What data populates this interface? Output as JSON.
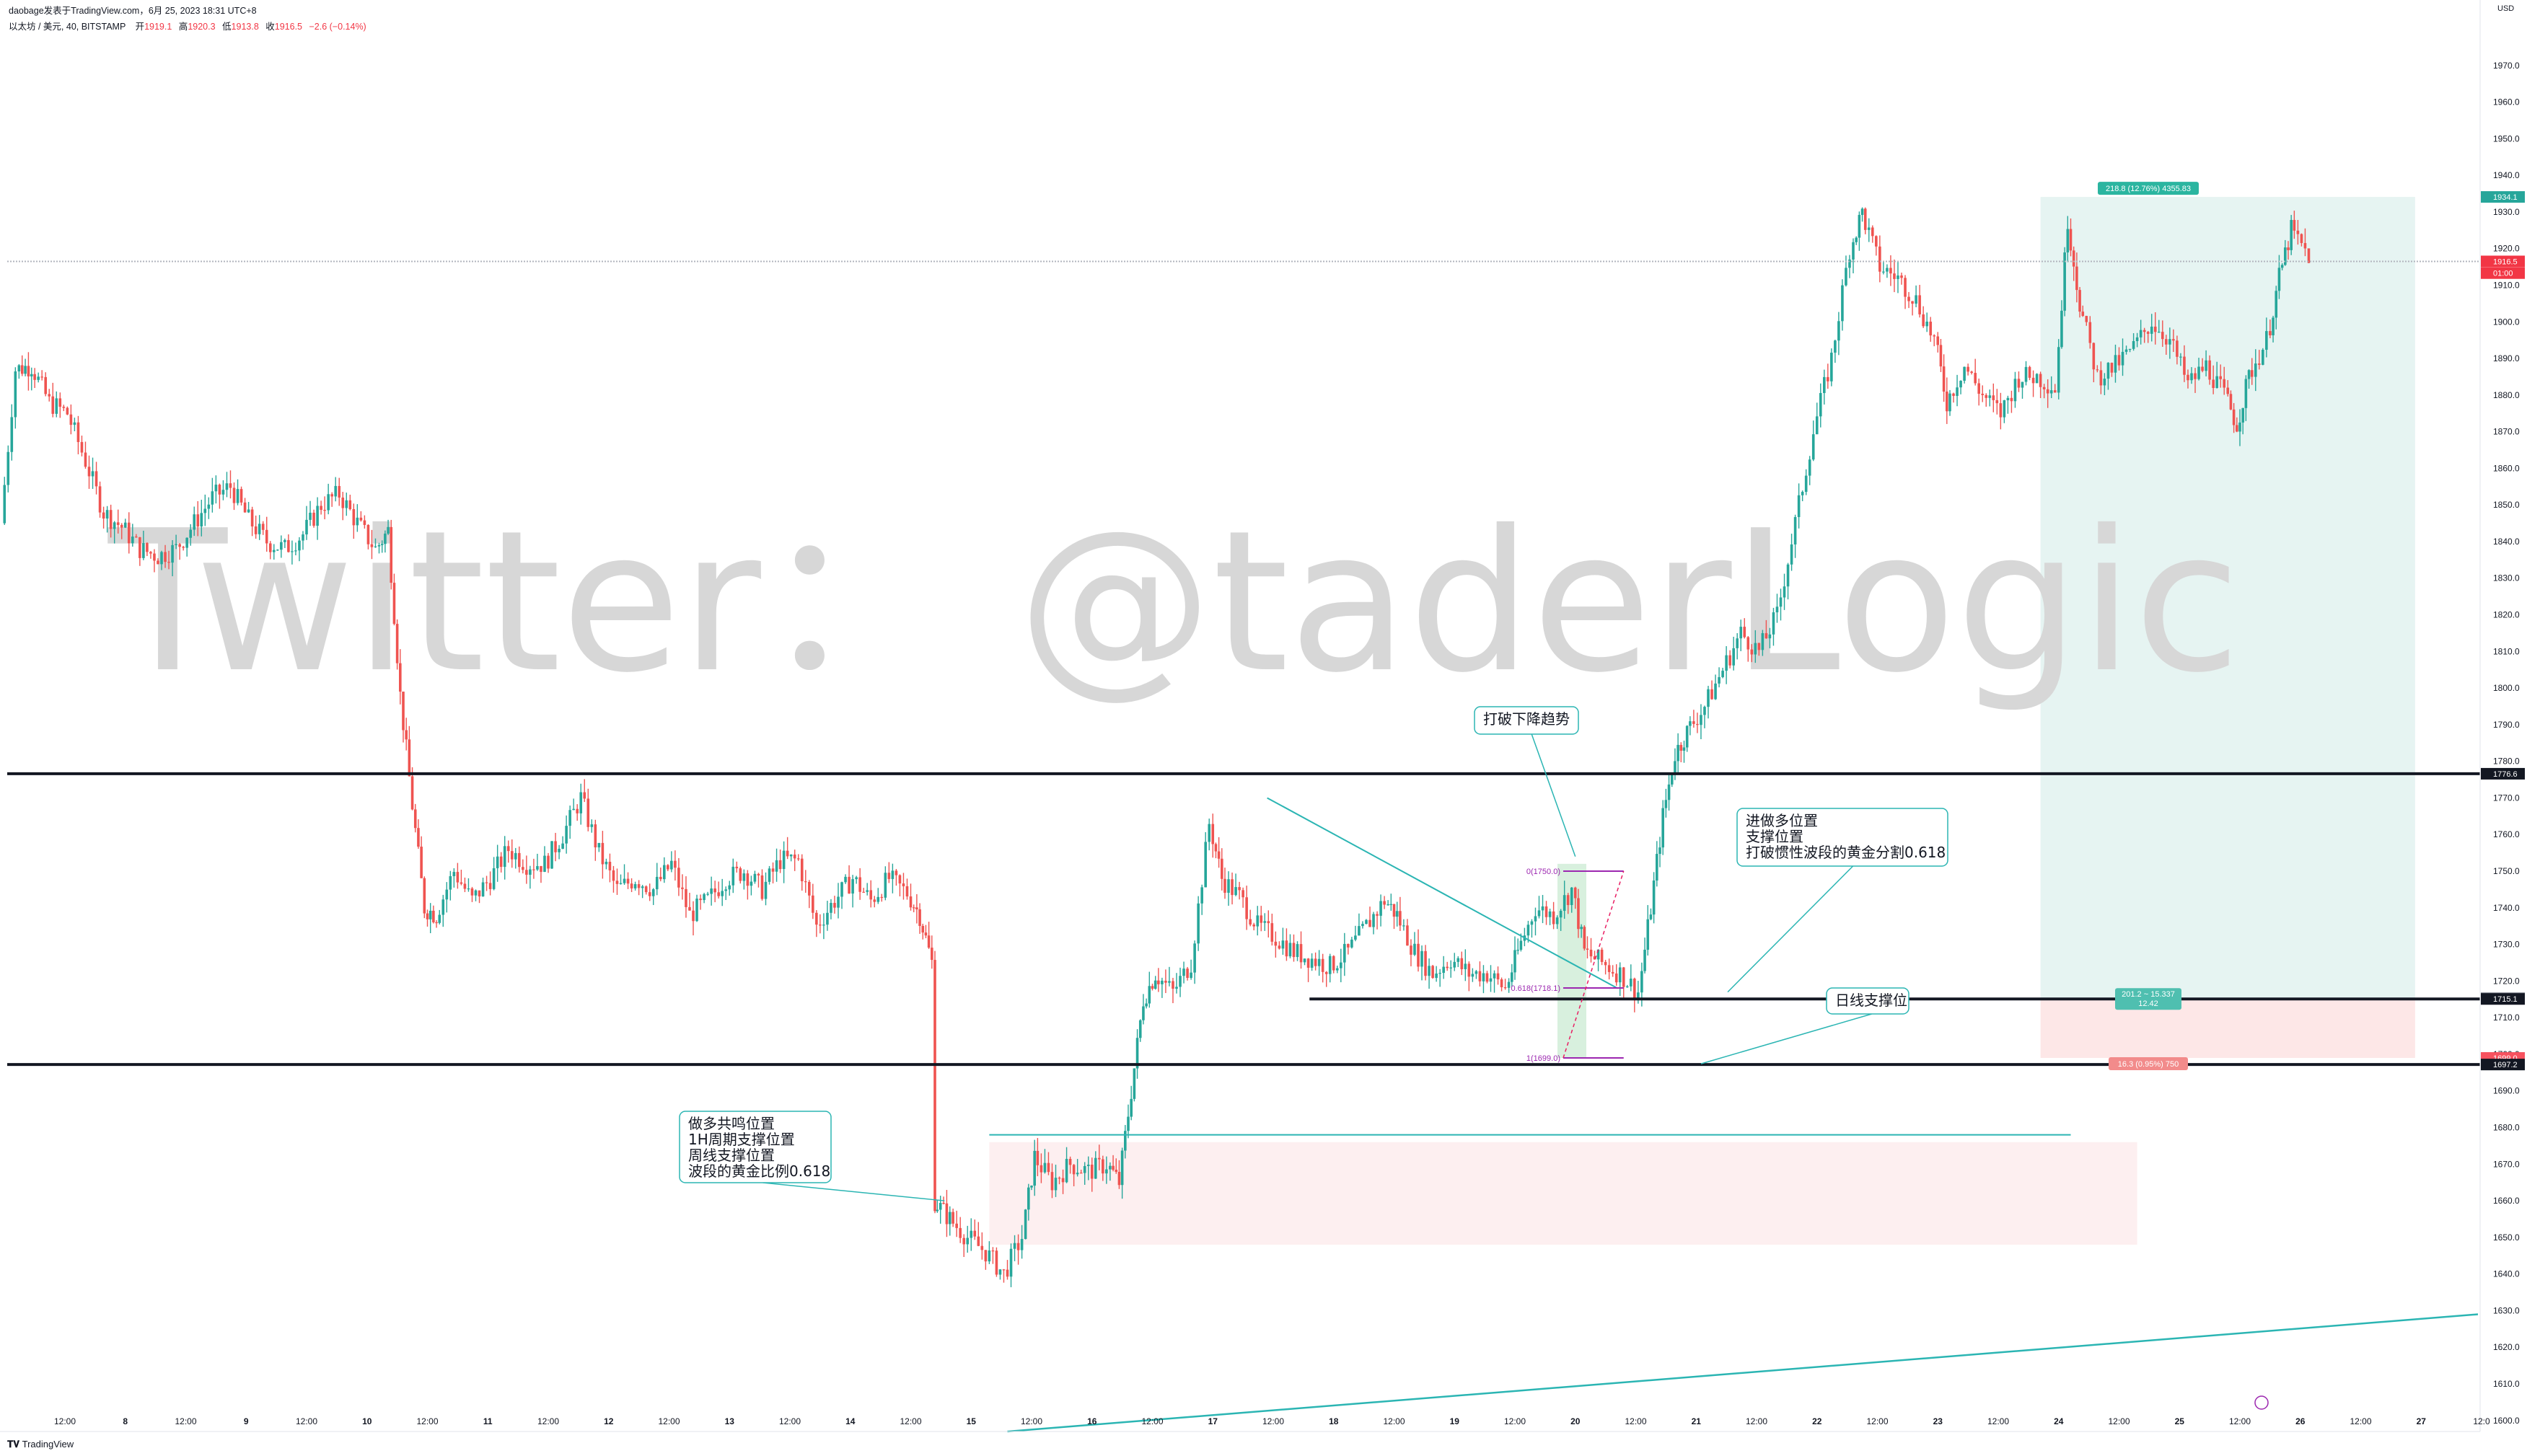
{
  "header": {
    "published_line": "daobage发表于TradingView.com，6月 25, 2023 18:31 UTC+8",
    "symbol_line": "以太坊 / 美元, 40, BITSTAMP",
    "ohlc": {
      "open_label": "开",
      "open": "1919.1",
      "high_label": "高",
      "high": "1920.3",
      "low_label": "低",
      "low": "1913.8",
      "close_label": "收",
      "close": "1916.5",
      "change": "−2.6 (−0.14%)"
    }
  },
  "watermark": "Twitter：  @taderLogic",
  "currency": "USD",
  "price_axis": {
    "ticks": [
      "1970.0",
      "1960.0",
      "1950.0",
      "1940.0",
      "1930.0",
      "1920.0",
      "1910.0",
      "1900.0",
      "1890.0",
      "1880.0",
      "1870.0",
      "1860.0",
      "1850.0",
      "1840.0",
      "1830.0",
      "1820.0",
      "1810.0",
      "1800.0",
      "1790.0",
      "1780.0",
      "1770.0",
      "1760.0",
      "1750.0",
      "1740.0",
      "1730.0",
      "1720.0",
      "1710.0",
      "1700.0",
      "1690.0",
      "1680.0",
      "1670.0",
      "1660.0",
      "1650.0",
      "1640.0",
      "1630.0",
      "1620.0",
      "1610.0",
      "1600.0"
    ],
    "tick_values": [
      1970,
      1960,
      1950,
      1940,
      1930,
      1920,
      1910,
      1900,
      1890,
      1880,
      1870,
      1860,
      1850,
      1840,
      1830,
      1820,
      1810,
      1800,
      1790,
      1780,
      1770,
      1760,
      1750,
      1740,
      1730,
      1720,
      1710,
      1700,
      1690,
      1680,
      1670,
      1660,
      1650,
      1640,
      1630,
      1620,
      1610,
      1600
    ],
    "labels": [
      {
        "text": "1934.1",
        "value": 1934.1,
        "color": "#26a69a"
      },
      {
        "text": "1916.5",
        "value": 1916.5,
        "color": "#f23645"
      },
      {
        "text": "01:00",
        "value": 1913.3,
        "color": "#f23645"
      },
      {
        "text": "1776.6",
        "value": 1776.6,
        "color": "#131722"
      },
      {
        "text": "1715.3",
        "value": 1715.3,
        "color": "#787b86"
      },
      {
        "text": "1715.1",
        "value": 1715.1,
        "color": "#131722"
      },
      {
        "text": "1699.0",
        "value": 1699.0,
        "color": "#f7525f"
      },
      {
        "text": "1697.2",
        "value": 1697.2,
        "color": "#131722"
      }
    ]
  },
  "time_axis": {
    "labels": [
      "12:00",
      "8",
      "12:00",
      "9",
      "12:00",
      "10",
      "12:00",
      "11",
      "12:00",
      "12",
      "12:00",
      "13",
      "12:00",
      "14",
      "12:00",
      "15",
      "12:00",
      "16",
      "12:00",
      "17",
      "12:00",
      "18",
      "12:00",
      "19",
      "12:00",
      "20",
      "12:00",
      "21",
      "12:00",
      "22",
      "12:00",
      "23",
      "12:00",
      "24",
      "12:00",
      "25",
      "12:00",
      "26",
      "12:00",
      "27",
      "12:0"
    ],
    "bold": [
      "8",
      "9",
      "10",
      "11",
      "12",
      "13",
      "14",
      "15",
      "16",
      "17",
      "18",
      "19",
      "20",
      "21",
      "22",
      "23",
      "24",
      "25",
      "26",
      "27"
    ]
  },
  "annotations": {
    "break_downtrend": "打破下降趋势",
    "long_entry": [
      "进做多位置",
      "支撑位置",
      "打破惯性波段的黄金分割0.618"
    ],
    "daily_support": "日线支撑位",
    "long_confluence": [
      "做多共鸣位置",
      "1H周期支撑位置",
      "周线支撑位置",
      "波段的黄金比例0.618"
    ]
  },
  "fib_labels": {
    "top": "0(1750.0)",
    "mid": "0.618(1718.1)",
    "bottom": "1(1699.0)"
  },
  "position_tool": {
    "target_label": "218.8 (12.76%) 4355.83",
    "entry_label_1": "201.2 ~ 15.337",
    "entry_label_2": "12.42",
    "stop_label": "16.3 (0.95%) 750"
  },
  "footer": {
    "logo": "TradingView"
  },
  "colors": {
    "up": "#26a69a",
    "down": "#ef5350",
    "trend": "#2bb5b3",
    "profit_zone": "#e6f4f2",
    "loss_zone": "#fde7e7",
    "demand_zone": "#fdeff0",
    "current_price": "#f23645",
    "fib": "#9c27b0"
  },
  "chart_data": {
    "type": "candlestick",
    "symbol": "以太坊 / 美元",
    "exchange": "BITSTAMP",
    "interval": "40",
    "currency": "USD",
    "ylim": [
      1597,
      1980
    ],
    "x_range_days": [
      "7 12:00",
      "27 12:00"
    ],
    "path_points": [
      [
        7.0,
        1845
      ],
      [
        7.12,
        1887
      ],
      [
        7.25,
        1888
      ],
      [
        7.4,
        1878
      ],
      [
        7.55,
        1875
      ],
      [
        7.7,
        1862
      ],
      [
        7.85,
        1848
      ],
      [
        8.0,
        1844
      ],
      [
        8.15,
        1838
      ],
      [
        8.3,
        1836
      ],
      [
        8.45,
        1838
      ],
      [
        8.6,
        1845
      ],
      [
        8.75,
        1852
      ],
      [
        8.9,
        1855
      ],
      [
        9.05,
        1846
      ],
      [
        9.2,
        1840
      ],
      [
        9.35,
        1838
      ],
      [
        9.5,
        1842
      ],
      [
        9.65,
        1850
      ],
      [
        9.8,
        1853
      ],
      [
        9.95,
        1845
      ],
      [
        10.1,
        1838
      ],
      [
        10.2,
        1843
      ],
      [
        10.3,
        1798
      ],
      [
        10.4,
        1768
      ],
      [
        10.5,
        1740
      ],
      [
        10.6,
        1738
      ],
      [
        10.75,
        1750
      ],
      [
        10.9,
        1742
      ],
      [
        11.05,
        1748
      ],
      [
        11.2,
        1756
      ],
      [
        11.35,
        1752
      ],
      [
        11.5,
        1752
      ],
      [
        11.65,
        1760
      ],
      [
        11.8,
        1770
      ],
      [
        11.95,
        1755
      ],
      [
        12.1,
        1745
      ],
      [
        12.25,
        1748
      ],
      [
        12.4,
        1745
      ],
      [
        12.55,
        1752
      ],
      [
        12.7,
        1738
      ],
      [
        12.85,
        1742
      ],
      [
        13.0,
        1748
      ],
      [
        13.15,
        1750
      ],
      [
        13.3,
        1745
      ],
      [
        13.45,
        1753
      ],
      [
        13.6,
        1753
      ],
      [
        13.75,
        1735
      ],
      [
        13.9,
        1742
      ],
      [
        14.05,
        1748
      ],
      [
        14.2,
        1742
      ],
      [
        14.35,
        1748
      ],
      [
        14.5,
        1744
      ],
      [
        14.6,
        1738
      ],
      [
        14.7,
        1725
      ],
      [
        14.72,
        1660
      ],
      [
        14.85,
        1655
      ],
      [
        15.0,
        1650
      ],
      [
        15.15,
        1646
      ],
      [
        15.3,
        1640
      ],
      [
        15.45,
        1650
      ],
      [
        15.55,
        1672
      ],
      [
        15.7,
        1665
      ],
      [
        15.85,
        1670
      ],
      [
        16.0,
        1668
      ],
      [
        16.15,
        1670
      ],
      [
        16.25,
        1665
      ],
      [
        16.35,
        1690
      ],
      [
        16.45,
        1715
      ],
      [
        16.55,
        1722
      ],
      [
        16.7,
        1717
      ],
      [
        16.85,
        1725
      ],
      [
        17.0,
        1763
      ],
      [
        17.1,
        1748
      ],
      [
        17.25,
        1743
      ],
      [
        17.4,
        1735
      ],
      [
        17.55,
        1732
      ],
      [
        17.7,
        1728
      ],
      [
        17.85,
        1726
      ],
      [
        18.0,
        1724
      ],
      [
        18.15,
        1728
      ],
      [
        18.3,
        1735
      ],
      [
        18.45,
        1742
      ],
      [
        18.55,
        1738
      ],
      [
        18.7,
        1728
      ],
      [
        18.85,
        1722
      ],
      [
        19.0,
        1726
      ],
      [
        19.15,
        1722
      ],
      [
        19.3,
        1722
      ],
      [
        19.45,
        1718
      ],
      [
        19.55,
        1728
      ],
      [
        19.7,
        1740
      ],
      [
        19.85,
        1738
      ],
      [
        20.0,
        1745
      ],
      [
        20.1,
        1728
      ],
      [
        20.25,
        1725
      ],
      [
        20.4,
        1722
      ],
      [
        20.55,
        1717
      ],
      [
        20.65,
        1740
      ],
      [
        20.75,
        1765
      ],
      [
        20.85,
        1782
      ],
      [
        20.95,
        1788
      ],
      [
        21.1,
        1795
      ],
      [
        21.25,
        1805
      ],
      [
        21.4,
        1815
      ],
      [
        21.55,
        1810
      ],
      [
        21.7,
        1820
      ],
      [
        21.85,
        1845
      ],
      [
        22.0,
        1870
      ],
      [
        22.15,
        1890
      ],
      [
        22.3,
        1920
      ],
      [
        22.4,
        1930
      ],
      [
        22.55,
        1915
      ],
      [
        22.7,
        1912
      ],
      [
        22.85,
        1906
      ],
      [
        23.0,
        1895
      ],
      [
        23.1,
        1878
      ],
      [
        23.25,
        1888
      ],
      [
        23.4,
        1880
      ],
      [
        23.55,
        1875
      ],
      [
        23.7,
        1885
      ],
      [
        23.85,
        1885
      ],
      [
        24.0,
        1882
      ],
      [
        24.1,
        1928
      ],
      [
        24.2,
        1905
      ],
      [
        24.35,
        1885
      ],
      [
        24.5,
        1888
      ],
      [
        24.65,
        1893
      ],
      [
        24.8,
        1900
      ],
      [
        24.95,
        1895
      ],
      [
        25.1,
        1883
      ],
      [
        25.25,
        1888
      ],
      [
        25.4,
        1880
      ],
      [
        25.5,
        1872
      ],
      [
        25.6,
        1885
      ],
      [
        25.75,
        1895
      ],
      [
        25.85,
        1912
      ],
      [
        25.95,
        1925
      ],
      [
        26.1,
        1918
      ]
    ],
    "horizontal_levels": [
      {
        "price": 1776.6,
        "from": "7 12:00",
        "to": "27 12:00"
      },
      {
        "price": 1715.1,
        "from": "17 12:00",
        "to": "27 12:00"
      },
      {
        "price": 1697.2,
        "from": "7 12:00",
        "to": "27 12:00"
      },
      {
        "price": 1916.5,
        "from": "7 12:00",
        "to": "27 12:00"
      },
      {
        "price": 1678.0,
        "from": "15 12:00",
        "to": "24 12:00"
      }
    ],
    "trendlines": [
      {
        "from": [
          17.45,
          1770
        ],
        "to": [
          20.35,
          1718
        ]
      },
      {
        "from": [
          15.3,
          1597
        ],
        "to": [
          27.5,
          1629
        ]
      },
      {
        "from": [
          20.45,
          1697
        ],
        "to": [
          21.95,
          1709
        ]
      }
    ],
    "demand_zone": {
      "from": 15.15,
      "to": 24.65,
      "low": 1648,
      "high": 1676
    },
    "long_position": {
      "from": 23.85,
      "to": 26.95,
      "entry": 1715.3,
      "target": 1934.1,
      "stop": 1699.0
    },
    "fib_retracement": {
      "from": 19.9,
      "to": 20.4,
      "levels": [
        {
          "ratio": 0,
          "price": 1750.0
        },
        {
          "ratio": 0.618,
          "price": 1718.1
        },
        {
          "ratio": 1,
          "price": 1699.0
        }
      ]
    }
  }
}
